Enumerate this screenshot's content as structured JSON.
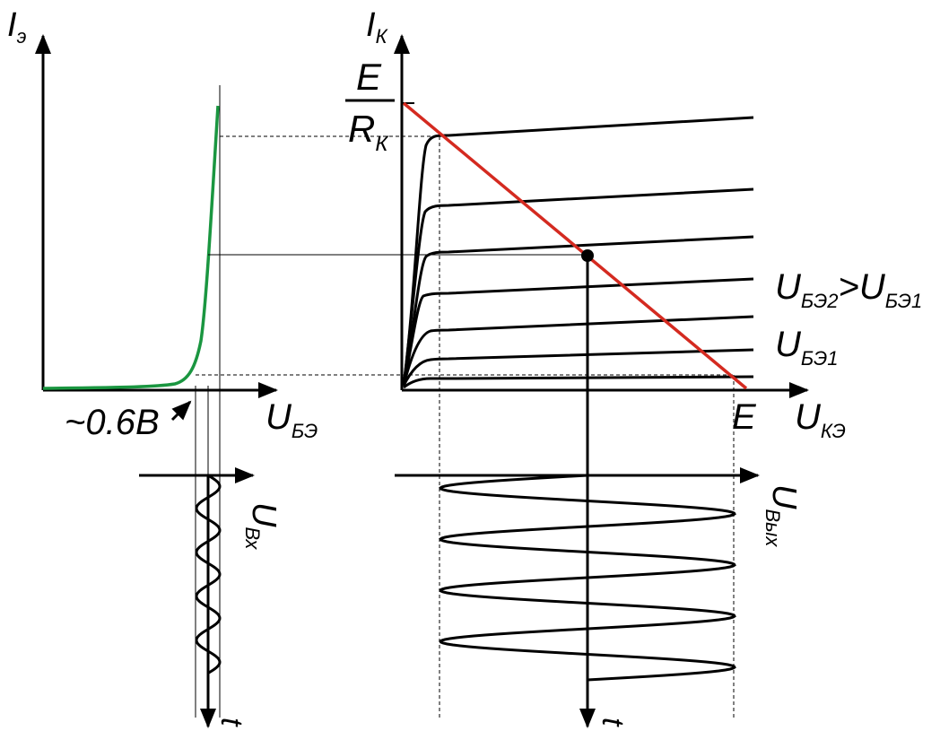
{
  "colors": {
    "input_curve": "#1a9640",
    "load_line": "#d42a20",
    "ink": "#000000"
  },
  "input_plot": {
    "y_axis_label_main": "I",
    "y_axis_label_sub": "э",
    "x_axis_label_main": "U",
    "x_axis_label_sub": "БЭ",
    "threshold_label": "~0.6В"
  },
  "output_plot": {
    "y_axis_label_main": "I",
    "y_axis_label_sub": "К",
    "x_axis_label_main": "U",
    "x_axis_label_sub": "КЭ",
    "e_over_r_numerator": "E",
    "e_over_r_denominator_main": "R",
    "e_over_r_denominator_sub": "К",
    "supply_label": "E",
    "curve_label_2_main_a": "U",
    "curve_label_2_sub_a": "БЭ2",
    "curve_label_2_op": ">",
    "curve_label_2_main_b": "U",
    "curve_label_2_sub_b": "БЭ1",
    "curve_label_1_main": "U",
    "curve_label_1_sub": "БЭ1"
  },
  "input_signal": {
    "axis_label_main": "U",
    "axis_label_sub": "Вх",
    "time_label": "t"
  },
  "output_signal": {
    "axis_label_main": "U",
    "axis_label_sub": "Вых",
    "time_label": "t"
  }
}
